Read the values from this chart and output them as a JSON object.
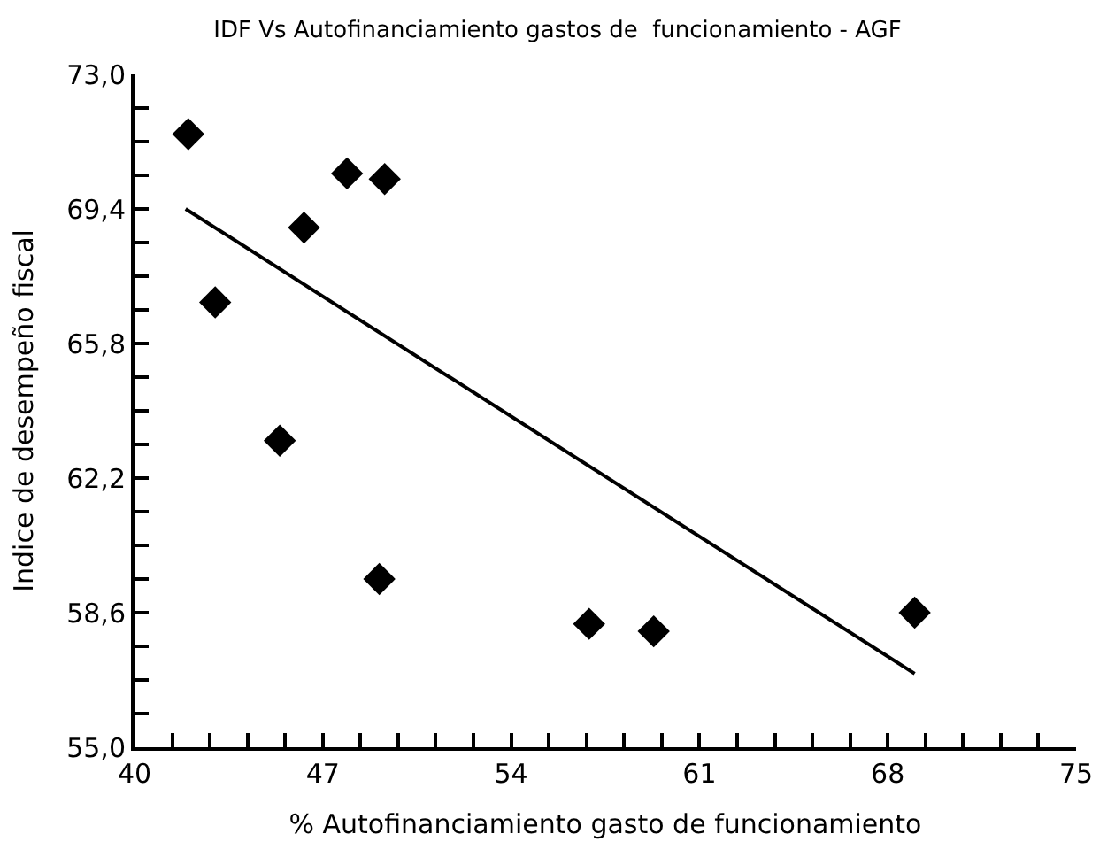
{
  "chart_data": {
    "type": "scatter",
    "title": "IDF Vs Autofinanciamiento gastos de  funcionamiento - AGF",
    "xlabel": "% Autofinanciamiento gasto de funcionamiento",
    "ylabel": "Indice de desempeño fiscal",
    "xlim": [
      40,
      75
    ],
    "ylim": [
      55,
      73
    ],
    "xticks": [
      40,
      {
        "value": 41.4,
        "label": null
      },
      {
        "value": 42.8,
        "label": null
      },
      {
        "value": 44.2,
        "label": null
      },
      {
        "value": 45.6,
        "label": null
      },
      47,
      {
        "value": 48.4,
        "label": null
      },
      {
        "value": 49.8,
        "label": null
      },
      {
        "value": 51.2,
        "label": null
      },
      {
        "value": 52.6,
        "label": null
      },
      54,
      {
        "value": 55.4,
        "label": null
      },
      {
        "value": 56.8,
        "label": null
      },
      {
        "value": 58.2,
        "label": null
      },
      {
        "value": 59.6,
        "label": null
      },
      61,
      {
        "value": 62.4,
        "label": null
      },
      {
        "value": 63.8,
        "label": null
      },
      {
        "value": 65.2,
        "label": null
      },
      {
        "value": 66.6,
        "label": null
      },
      68,
      {
        "value": 69.4,
        "label": null
      },
      {
        "value": 70.8,
        "label": null
      },
      {
        "value": 72.2,
        "label": null
      },
      {
        "value": 73.6,
        "label": null
      },
      75
    ],
    "yticks": [
      {
        "value": 55,
        "label": "55,0"
      },
      {
        "value": 55.9,
        "label": null
      },
      {
        "value": 56.8,
        "label": null
      },
      {
        "value": 57.7,
        "label": null
      },
      {
        "value": 58.6,
        "label": "58,6"
      },
      {
        "value": 59.5,
        "label": null
      },
      {
        "value": 60.4,
        "label": null
      },
      {
        "value": 61.3,
        "label": null
      },
      {
        "value": 62.2,
        "label": "62,2"
      },
      {
        "value": 63.1,
        "label": null
      },
      {
        "value": 64.0,
        "label": null
      },
      {
        "value": 64.9,
        "label": null
      },
      {
        "value": 65.8,
        "label": "65,8"
      },
      {
        "value": 66.7,
        "label": null
      },
      {
        "value": 67.6,
        "label": null
      },
      {
        "value": 68.5,
        "label": null
      },
      {
        "value": 69.4,
        "label": "69,4"
      },
      {
        "value": 70.3,
        "label": null
      },
      {
        "value": 71.2,
        "label": null
      },
      {
        "value": 72.1,
        "label": null
      },
      {
        "value": 73,
        "label": "73,0"
      }
    ],
    "series": [
      {
        "color": "#000000",
        "marker": "diamond",
        "x": [
          42.0,
          43.0,
          46.3,
          45.4,
          47.9,
          49.3,
          49.1,
          56.9,
          59.3,
          69.0
        ],
        "values": [
          71.4,
          66.9,
          68.9,
          63.2,
          70.35,
          70.2,
          59.5,
          58.3,
          58.1,
          58.6
        ]
      },
      {
        "type": "line",
        "color": "#000000",
        "marker": "none",
        "line_style": "solid",
        "x": [
          41.9,
          69.0
        ],
        "values": [
          69.4,
          56.97
        ]
      }
    ]
  }
}
